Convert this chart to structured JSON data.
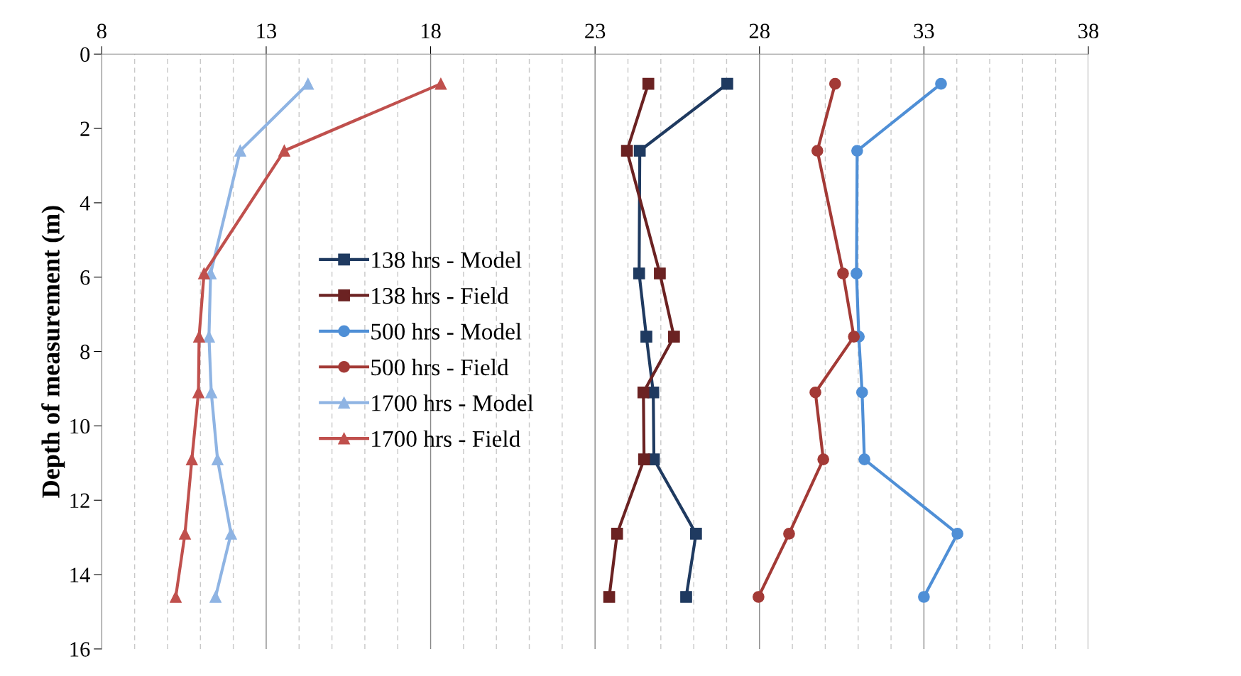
{
  "chart_data": {
    "type": "line",
    "ylabel": "Depth of measurement (m)",
    "xlim": [
      8,
      38
    ],
    "xticks": [
      8,
      {
        "value": 9,
        "label": null
      },
      {
        "value": 10,
        "label": null
      },
      {
        "value": 11,
        "label": null
      },
      {
        "value": 12,
        "label": null
      },
      13,
      {
        "value": 14,
        "label": null
      },
      {
        "value": 15,
        "label": null
      },
      {
        "value": 16,
        "label": null
      },
      {
        "value": 17,
        "label": null
      },
      18,
      {
        "value": 19,
        "label": null
      },
      {
        "value": 20,
        "label": null
      },
      {
        "value": 21,
        "label": null
      },
      {
        "value": 22,
        "label": null
      },
      23,
      {
        "value": 24,
        "label": null
      },
      {
        "value": 25,
        "label": null
      },
      {
        "value": 26,
        "label": null
      },
      {
        "value": 27,
        "label": null
      },
      28,
      {
        "value": 29,
        "label": null
      },
      {
        "value": 30,
        "label": null
      },
      {
        "value": 31,
        "label": null
      },
      {
        "value": 32,
        "label": null
      },
      33,
      {
        "value": 34,
        "label": null
      },
      {
        "value": 35,
        "label": null
      },
      {
        "value": 36,
        "label": null
      },
      {
        "value": 37,
        "label": null
      },
      38
    ],
    "ylim": [
      16,
      0
    ],
    "yticks": [
      0,
      2,
      4,
      6,
      8,
      10,
      12,
      14,
      16
    ],
    "grid": "x",
    "legend": "center left",
    "series": [
      {
        "name": "138 hrs - Model",
        "color": "#1f3a60",
        "marker": "square",
        "x": [
          27.02,
          24.36,
          24.34,
          24.56,
          24.77,
          24.79,
          26.07,
          25.77
        ],
        "values": [
          0.8,
          2.6,
          5.9,
          7.6,
          9.1,
          10.9,
          12.9,
          14.6
        ]
      },
      {
        "name": "138 hrs - Field",
        "color": "#6b2222",
        "marker": "square",
        "x": [
          24.62,
          23.97,
          24.97,
          25.4,
          24.47,
          24.49,
          23.67,
          23.43
        ],
        "values": [
          0.8,
          2.6,
          5.9,
          7.6,
          9.1,
          10.9,
          12.9,
          14.6
        ]
      },
      {
        "name": "500 hrs - Model",
        "color": "#4f8fd6",
        "marker": "circle",
        "x": [
          33.52,
          30.97,
          30.95,
          31.02,
          31.12,
          31.19,
          34.02,
          33.0
        ],
        "values": [
          0.8,
          2.6,
          5.9,
          7.6,
          9.1,
          10.9,
          12.9,
          14.6
        ]
      },
      {
        "name": "500 hrs - Field",
        "color": "#a33a36",
        "marker": "circle",
        "x": [
          30.3,
          29.76,
          30.54,
          30.87,
          29.7,
          29.94,
          28.9,
          27.97
        ],
        "values": [
          0.8,
          2.6,
          5.9,
          7.6,
          9.1,
          10.9,
          12.9,
          14.6
        ]
      },
      {
        "name": "1700 hrs - Model",
        "color": "#8fb4e3",
        "marker": "triangle",
        "x": [
          14.27,
          12.21,
          11.31,
          11.26,
          11.33,
          11.52,
          11.93,
          11.46
        ],
        "values": [
          0.8,
          2.6,
          5.9,
          7.6,
          9.1,
          10.9,
          12.9,
          14.6
        ]
      },
      {
        "name": "1700 hrs - Field",
        "color": "#c0504d",
        "marker": "triangle",
        "x": [
          18.31,
          13.55,
          11.11,
          10.96,
          10.94,
          10.74,
          10.53,
          10.25
        ],
        "values": [
          0.8,
          2.6,
          5.9,
          7.6,
          9.1,
          10.9,
          12.9,
          14.6
        ]
      }
    ]
  }
}
